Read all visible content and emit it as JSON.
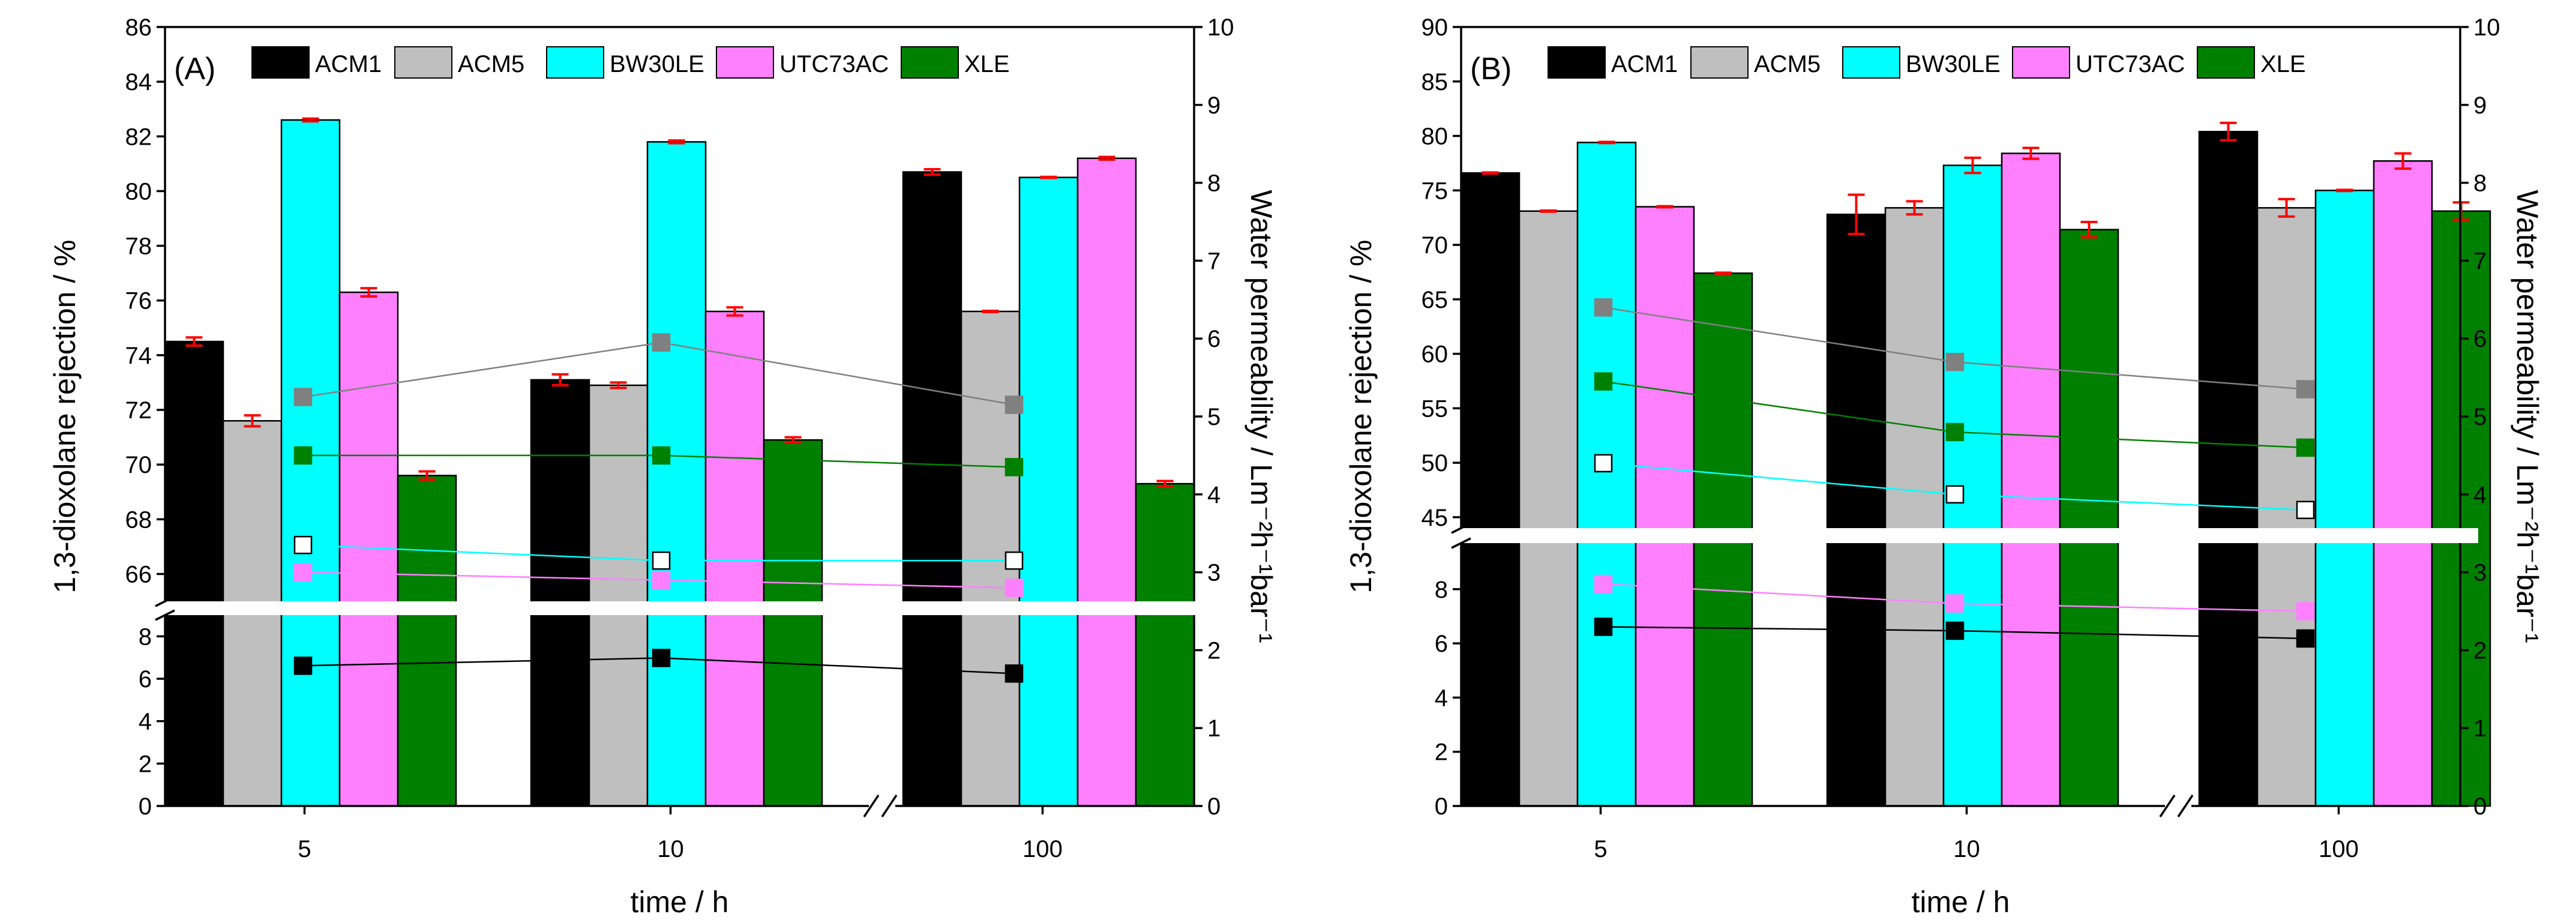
{
  "figure": {
    "x_label": "time / h",
    "y_left_label": "1,3-dioxolane rejection / %",
    "y_right_label": "Water permeability / Lm⁻²h⁻¹bar⁻¹",
    "categories": [
      "5",
      "10",
      "100"
    ]
  },
  "chart_data": [
    {
      "type": "bar",
      "panel": "(A)",
      "categories": [
        "5",
        "10",
        "100"
      ],
      "xlabel": "time / h",
      "ylabel": "1,3-dioxolane rejection / %",
      "y2label": "Water permeability / Lm⁻²h⁻¹bar⁻¹",
      "y_lower_range": [
        0,
        9
      ],
      "y_upper_range": [
        65,
        86
      ],
      "y_lower_ticks": [
        0,
        2,
        4,
        6,
        8
      ],
      "y_upper_ticks": [
        66,
        68,
        70,
        72,
        74,
        76,
        78,
        80,
        82,
        84,
        86
      ],
      "y2_range": [
        0,
        10
      ],
      "y2_ticks": [
        0,
        1,
        2,
        3,
        4,
        5,
        6,
        7,
        8,
        9,
        10
      ],
      "series": [
        {
          "name": "ACM1",
          "color": "#000000",
          "values": [
            74.5,
            73.1,
            80.7
          ],
          "errors": [
            0.15,
            0.2,
            0.1
          ]
        },
        {
          "name": "ACM5",
          "color": "#bfbfbf",
          "values": [
            71.6,
            72.9,
            75.6
          ],
          "errors": [
            0.2,
            0.1,
            0.02
          ]
        },
        {
          "name": "BW30LE",
          "color": "#00ffff",
          "values": [
            82.6,
            81.8,
            80.5
          ],
          "errors": [
            0.05,
            0.05,
            0.02
          ]
        },
        {
          "name": "UTC73AC",
          "color": "#ff80ff",
          "values": [
            76.3,
            75.6,
            81.2
          ],
          "errors": [
            0.15,
            0.15,
            0.05
          ]
        },
        {
          "name": "XLE",
          "color": "#008000",
          "values": [
            69.6,
            70.9,
            69.3
          ],
          "errors": [
            0.15,
            0.1,
            0.1
          ]
        }
      ],
      "permeability": [
        {
          "name": "ACM1",
          "color": "#000000",
          "fill": "#000000",
          "values": [
            1.8,
            1.9,
            1.7
          ]
        },
        {
          "name": "ACM5",
          "color": "#808080",
          "fill": "#808080",
          "values": [
            5.25,
            5.95,
            5.15
          ]
        },
        {
          "name": "BW30LE",
          "color": "#00ffff",
          "fill": "#ffffff",
          "values": [
            3.35,
            3.15,
            3.15
          ]
        },
        {
          "name": "UTC73AC",
          "color": "#ff80ff",
          "fill": "#ff80ff",
          "values": [
            3.0,
            2.9,
            2.8
          ]
        },
        {
          "name": "XLE",
          "color": "#008000",
          "fill": "#008000",
          "values": [
            4.5,
            4.5,
            4.35
          ]
        }
      ]
    },
    {
      "type": "bar",
      "panel": "(B)",
      "categories": [
        "5",
        "10",
        "100"
      ],
      "xlabel": "time / h",
      "ylabel": "1,3-dioxolane rejection / %",
      "y2label": "Water permeability / Lm⁻²h⁻¹bar⁻¹",
      "y_lower_range": [
        0,
        9.7
      ],
      "y_upper_range": [
        44,
        90
      ],
      "y_lower_ticks": [
        0,
        2,
        4,
        6,
        8
      ],
      "y_upper_ticks": [
        45,
        50,
        55,
        60,
        65,
        70,
        75,
        80,
        85,
        90
      ],
      "y2_range": [
        0,
        10
      ],
      "y2_ticks": [
        0,
        1,
        2,
        3,
        4,
        5,
        6,
        7,
        8,
        9,
        10
      ],
      "series": [
        {
          "name": "ACM1",
          "color": "#000000",
          "values": [
            76.6,
            72.8,
            80.4
          ],
          "errors": [
            0.05,
            1.8,
            0.8
          ]
        },
        {
          "name": "ACM5",
          "color": "#bfbfbf",
          "values": [
            73.1,
            73.4,
            73.4
          ],
          "errors": [
            0.05,
            0.6,
            0.8
          ]
        },
        {
          "name": "BW30LE",
          "color": "#00ffff",
          "values": [
            79.4,
            77.3,
            75.0
          ],
          "errors": [
            0.05,
            0.7,
            0.05
          ]
        },
        {
          "name": "UTC73AC",
          "color": "#ff80ff",
          "values": [
            73.5,
            78.4,
            77.7
          ],
          "errors": [
            0.05,
            0.5,
            0.7
          ]
        },
        {
          "name": "XLE",
          "color": "#008000",
          "values": [
            67.4,
            71.4,
            73.1
          ],
          "errors": [
            0.05,
            0.7,
            0.8
          ]
        }
      ],
      "permeability": [
        {
          "name": "ACM1",
          "color": "#000000",
          "fill": "#000000",
          "values": [
            2.3,
            2.25,
            2.15
          ]
        },
        {
          "name": "ACM5",
          "color": "#808080",
          "fill": "#808080",
          "values": [
            6.4,
            5.7,
            5.35
          ]
        },
        {
          "name": "BW30LE",
          "color": "#00ffff",
          "fill": "#ffffff",
          "values": [
            4.4,
            4.0,
            3.8
          ]
        },
        {
          "name": "UTC73AC",
          "color": "#ff80ff",
          "fill": "#ff80ff",
          "values": [
            2.85,
            2.6,
            2.5
          ]
        },
        {
          "name": "XLE",
          "color": "#008000",
          "fill": "#008000",
          "values": [
            5.45,
            4.8,
            4.6
          ]
        }
      ]
    }
  ]
}
